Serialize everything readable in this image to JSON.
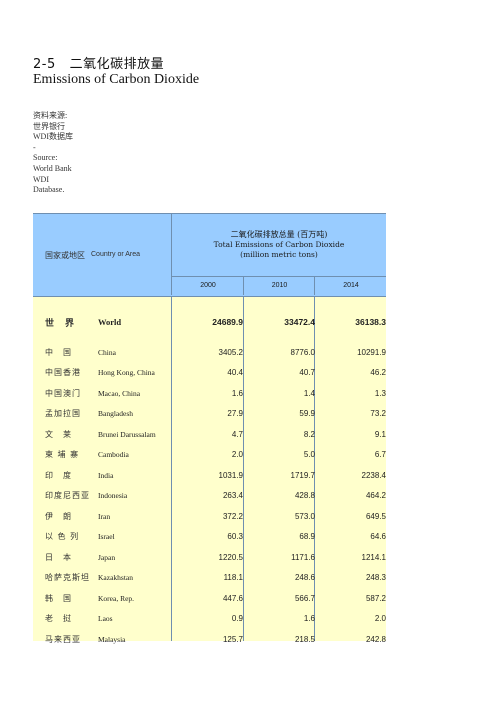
{
  "title": {
    "code": "2-5",
    "cn": "二氧化碳排放量",
    "en": "Emissions of Carbon Dioxide"
  },
  "source": [
    "资料来源:",
    "世界银行",
    "WDI数据库",
    "-",
    "Source:",
    "World Bank",
    "WDI",
    "Database."
  ],
  "header": {
    "col_cn": "国家或地区",
    "col_en": "Country or Area",
    "group_cn": "二氧化碳排放总量 (百万吨)",
    "group_en": "Total  Emissions of Carbon Dioxide",
    "group_unit": "(million metric tons)",
    "years": [
      "2000",
      "2010",
      "2014"
    ]
  },
  "rows": [
    {
      "cn": "世　界",
      "en": "World",
      "values": [
        "24689.9",
        "33472.4",
        "36138.3"
      ],
      "bold": true
    },
    {
      "cn": "中　国",
      "en": "China",
      "values": [
        "3405.2",
        "8776.0",
        "10291.9"
      ]
    },
    {
      "cn": "中国香港",
      "en": "Hong Kong, China",
      "values": [
        "40.4",
        "40.7",
        "46.2"
      ]
    },
    {
      "cn": "中国澳门",
      "en": "Macao, China",
      "values": [
        "1.6",
        "1.4",
        "1.3"
      ]
    },
    {
      "cn": "孟加拉国",
      "en": "Bangladesh",
      "values": [
        "27.9",
        "59.9",
        "73.2"
      ]
    },
    {
      "cn": "文　莱",
      "en": "Brunei Darussalam",
      "values": [
        "4.7",
        "8.2",
        "9.1"
      ]
    },
    {
      "cn": "柬 埔 寨",
      "en": "Cambodia",
      "values": [
        "2.0",
        "5.0",
        "6.7"
      ]
    },
    {
      "cn": "印　度",
      "en": "India",
      "values": [
        "1031.9",
        "1719.7",
        "2238.4"
      ]
    },
    {
      "cn": "印度尼西亚",
      "en": "Indonesia",
      "values": [
        "263.4",
        "428.8",
        "464.2"
      ]
    },
    {
      "cn": "伊　朗",
      "en": "Iran",
      "values": [
        "372.2",
        "573.0",
        "649.5"
      ]
    },
    {
      "cn": "以 色 列",
      "en": "Israel",
      "values": [
        "60.3",
        "68.9",
        "64.6"
      ]
    },
    {
      "cn": "日　本",
      "en": "Japan",
      "values": [
        "1220.5",
        "1171.6",
        "1214.1"
      ]
    },
    {
      "cn": "哈萨克斯坦",
      "en": "Kazakhstan",
      "values": [
        "118.1",
        "248.6",
        "248.3"
      ]
    },
    {
      "cn": "韩　国",
      "en": "Korea, Rep.",
      "values": [
        "447.6",
        "566.7",
        "587.2"
      ]
    },
    {
      "cn": "老　挝",
      "en": "Laos",
      "values": [
        "0.9",
        "1.6",
        "2.0"
      ]
    },
    {
      "cn": "马来西亚",
      "en": "Malaysia",
      "values": [
        "125.7",
        "218.5",
        "242.8"
      ]
    }
  ]
}
